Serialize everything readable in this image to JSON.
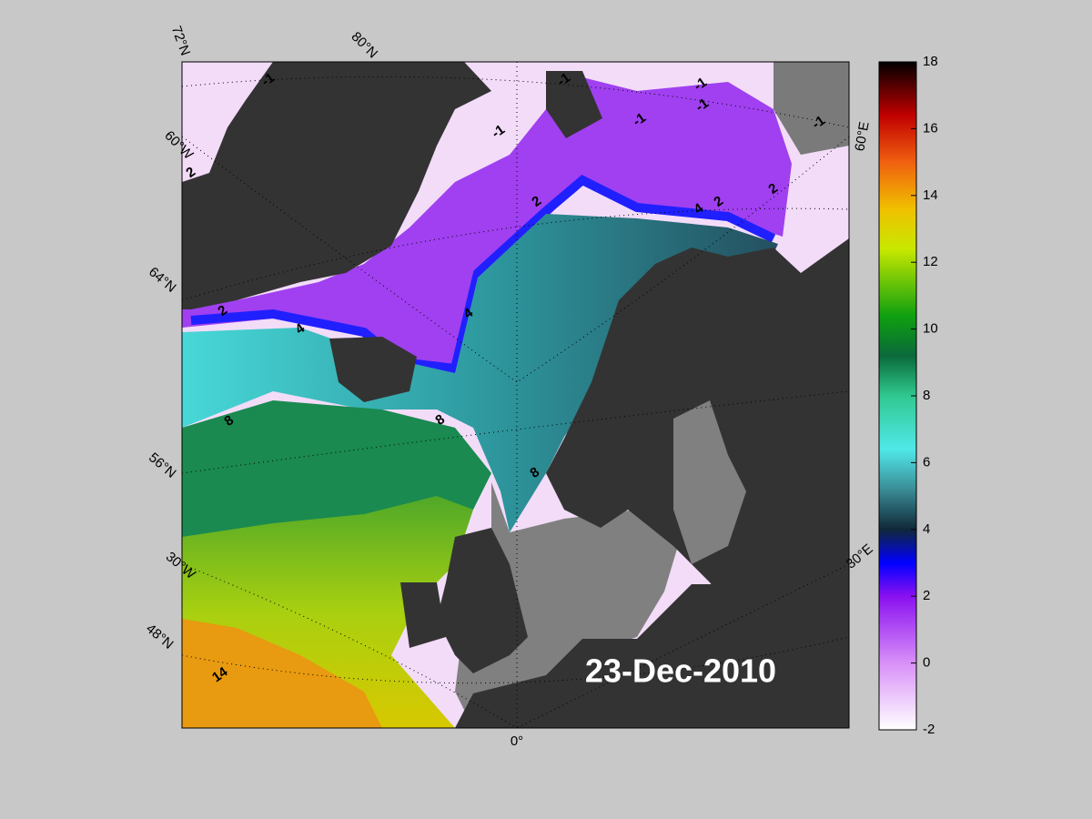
{
  "map": {
    "date_label": "23-Dec-2010",
    "graticule_labels": [
      "72°N",
      "80°N",
      "60°W",
      "64°N",
      "56°N",
      "30°W",
      "48°N",
      "0°",
      "60°E",
      "30°E"
    ],
    "contour_labels": [
      -1,
      -1,
      -1,
      -1,
      -1,
      -1,
      -1,
      2,
      2,
      2,
      2,
      2,
      4,
      4,
      4,
      8,
      8,
      8,
      14
    ],
    "colorbar": {
      "lim": [
        -2,
        18
      ],
      "ticks": [
        -2,
        0,
        2,
        4,
        6,
        8,
        10,
        12,
        14,
        16,
        18
      ]
    }
  }
}
